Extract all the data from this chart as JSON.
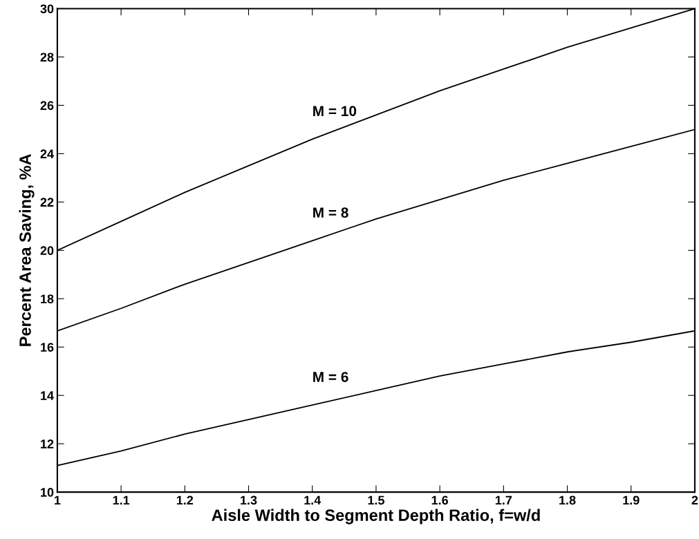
{
  "chart_data": {
    "type": "line",
    "xlabel": "Aisle Width to Segment Depth Ratio, f=w/d",
    "ylabel": "Percent Area Saving, %A",
    "x": [
      1.0,
      1.1,
      1.2,
      1.3,
      1.4,
      1.5,
      1.6,
      1.7,
      1.8,
      1.9,
      2.0
    ],
    "series": [
      {
        "color": "#000000",
        "values": [
          20.0,
          21.2,
          22.4,
          23.5,
          24.6,
          25.6,
          26.6,
          27.5,
          28.4,
          29.2,
          30.0
        ]
      },
      {
        "color": "#000000",
        "values": [
          16.67,
          17.6,
          18.6,
          19.5,
          20.4,
          21.3,
          22.1,
          22.9,
          23.6,
          24.3,
          25.0
        ]
      },
      {
        "color": "#000000",
        "values": [
          11.1,
          11.7,
          12.4,
          13.0,
          13.6,
          14.2,
          14.8,
          15.3,
          15.8,
          16.2,
          16.67
        ]
      }
    ],
    "annotations": [
      "M = 10",
      "M = 8",
      "M = 6"
    ],
    "xlim": [
      1,
      2
    ],
    "xticks": [
      1,
      1.1,
      1.2,
      1.3,
      1.4,
      1.5,
      1.6,
      1.7,
      1.8,
      1.9,
      2
    ],
    "ylim": [
      10,
      30
    ],
    "yticks": [
      10,
      12,
      14,
      16,
      18,
      20,
      22,
      24,
      26,
      28,
      30
    ],
    "grid": false,
    "legend": false,
    "marker": "none",
    "line_style": "solid"
  }
}
